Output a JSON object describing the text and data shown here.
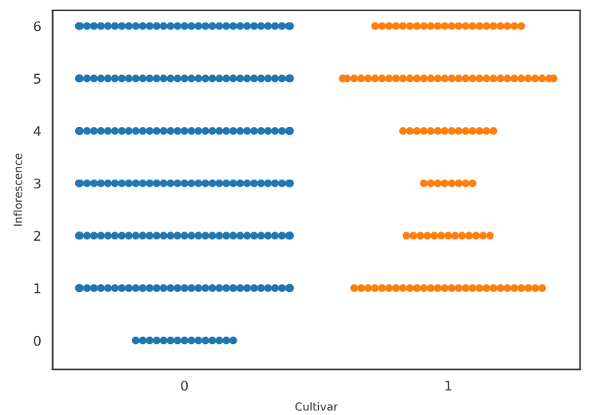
{
  "chart_data": {
    "type": "scatter",
    "xlabel": "Cultivar",
    "ylabel": "Inflorescence",
    "categories": [
      "0",
      "1"
    ],
    "ylim": [
      -0.55,
      6.3
    ],
    "yticks": [
      0,
      1,
      2,
      3,
      4,
      5,
      6
    ],
    "grid": false,
    "marker": "circle",
    "series": [
      {
        "color": "#1f77b4",
        "x": [
          "0",
          "0",
          "0",
          "0",
          "0",
          "0",
          "0",
          "0",
          "0",
          "0",
          "0",
          "0",
          "0",
          "0",
          "0",
          "0",
          "0",
          "0",
          "0",
          "0",
          "0",
          "0",
          "0",
          "0",
          "0",
          "0",
          "0",
          "0",
          "0",
          "0",
          "0",
          "0",
          "0",
          "0",
          "0",
          "0",
          "0",
          "0",
          "0",
          "0",
          "0",
          "0",
          "0",
          "0",
          "0",
          "0",
          "0",
          "0",
          "0",
          "0",
          "0",
          "0",
          "0",
          "0",
          "0",
          "0",
          "0",
          "0",
          "0",
          "0",
          "0",
          "0",
          "0",
          "0",
          "0",
          "0",
          "0",
          "0",
          "0",
          "0",
          "0",
          "0",
          "0",
          "0",
          "0",
          "0",
          "0",
          "0",
          "0",
          "0",
          "0",
          "0",
          "0",
          "0",
          "0",
          "0",
          "0",
          "0",
          "0",
          "0",
          "0",
          "0",
          "0",
          "0",
          "0",
          "0",
          "0",
          "0",
          "0",
          "0",
          "0",
          "0",
          "0",
          "0",
          "0",
          "0",
          "0",
          "0",
          "0",
          "0",
          "0",
          "0",
          "0",
          "0",
          "0",
          "0",
          "0",
          "0",
          "0",
          "0",
          "0",
          "0",
          "0",
          "0",
          "0",
          "0",
          "0",
          "0",
          "0",
          "0",
          "0",
          "0",
          "0",
          "0",
          "0",
          "0",
          "0",
          "0",
          "0",
          "0",
          "0",
          "0",
          "0",
          "0",
          "0",
          "0",
          "0",
          "0",
          "0",
          "0",
          "0",
          "0",
          "0",
          "0",
          "0",
          "0",
          "0",
          "0",
          "0",
          "0",
          "0",
          "0",
          "0",
          "0",
          "0",
          "0",
          "0",
          "0",
          "0",
          "0",
          "0",
          "0",
          "0",
          "0",
          "0",
          "0",
          "0",
          "0",
          "0",
          "0",
          "0",
          "0",
          "0",
          "0",
          "0",
          "0",
          "0",
          "0",
          "0",
          "0",
          "0",
          "0",
          "0",
          "0",
          "0",
          "0",
          "0",
          "0",
          "0",
          "0",
          "0",
          "0",
          "0",
          "0",
          "0",
          "0",
          "0",
          "0",
          "0",
          "0",
          "0",
          "0",
          "0",
          "0",
          "0",
          "0",
          "0",
          "0",
          "0",
          "0",
          "0",
          "0",
          "0",
          "0",
          "0"
        ],
        "values": [
          0,
          0,
          0,
          0,
          0,
          0,
          0,
          0,
          0,
          0,
          0,
          0,
          0,
          0,
          0,
          1,
          1,
          1,
          1,
          1,
          1,
          1,
          1,
          1,
          1,
          1,
          1,
          1,
          1,
          1,
          1,
          1,
          1,
          1,
          1,
          1,
          1,
          1,
          1,
          1,
          1,
          1,
          1,
          1,
          1,
          1,
          1,
          1,
          1,
          1,
          2,
          2,
          2,
          2,
          2,
          2,
          2,
          2,
          2,
          2,
          2,
          2,
          2,
          2,
          2,
          2,
          2,
          2,
          2,
          2,
          2,
          2,
          2,
          2,
          2,
          2,
          2,
          2,
          2,
          2,
          2,
          2,
          2,
          2,
          2,
          3,
          3,
          3,
          3,
          3,
          3,
          3,
          3,
          3,
          3,
          3,
          3,
          3,
          3,
          3,
          3,
          3,
          3,
          3,
          3,
          3,
          3,
          3,
          3,
          3,
          3,
          3,
          3,
          3,
          3,
          3,
          3,
          3,
          3,
          3,
          4,
          4,
          4,
          4,
          4,
          4,
          4,
          4,
          4,
          4,
          4,
          4,
          4,
          4,
          4,
          4,
          4,
          4,
          4,
          4,
          4,
          4,
          4,
          4,
          4,
          4,
          4,
          4,
          4,
          4,
          4,
          4,
          4,
          4,
          4,
          5,
          5,
          5,
          5,
          5,
          5,
          5,
          5,
          5,
          5,
          5,
          5,
          5,
          5,
          5,
          5,
          5,
          5,
          5,
          5,
          5,
          5,
          5,
          5,
          5,
          5,
          5,
          5,
          5,
          5,
          5,
          5,
          5,
          5,
          5,
          6,
          6,
          6,
          6,
          6,
          6,
          6,
          6,
          6,
          6,
          6,
          6,
          6,
          6,
          6,
          6,
          6,
          6,
          6,
          6,
          6,
          6,
          6,
          6,
          6,
          6,
          6,
          6,
          6,
          6,
          6,
          6,
          6,
          6,
          6
        ]
      },
      {
        "color": "#ff7f0e",
        "x": [
          "1",
          "1",
          "1",
          "1",
          "1",
          "1",
          "1",
          "1",
          "1",
          "1",
          "1",
          "1",
          "1",
          "1",
          "1",
          "1",
          "1",
          "1",
          "1",
          "1",
          "1",
          "1",
          "1",
          "1",
          "1",
          "1",
          "1",
          "1",
          "1",
          "1",
          "1",
          "1",
          "1",
          "1",
          "1",
          "1",
          "1",
          "1",
          "1",
          "1",
          "1",
          "1",
          "1",
          "1",
          "1",
          "1",
          "1",
          "1",
          "1",
          "1",
          "1",
          "1",
          "1",
          "1",
          "1",
          "1",
          "1",
          "1",
          "1",
          "1",
          "1",
          "1",
          "1",
          "1",
          "1",
          "1",
          "1",
          "1",
          "1",
          "1",
          "1",
          "1",
          "1",
          "1",
          "1",
          "1",
          "1",
          "1",
          "1",
          "1",
          "1",
          "1",
          "1",
          "1",
          "1",
          "1",
          "1",
          "1",
          "1",
          "1",
          "1",
          "1",
          "1",
          "1",
          "1",
          "1",
          "1",
          "1",
          "1",
          "1",
          "1",
          "1",
          "1",
          "1",
          "1",
          "1",
          "1",
          "1",
          "1",
          "1",
          "1",
          "1",
          "1",
          "1",
          "1",
          "1",
          "1"
        ],
        "values": [
          1,
          1,
          1,
          1,
          1,
          1,
          1,
          1,
          1,
          1,
          1,
          1,
          1,
          1,
          1,
          1,
          1,
          1,
          1,
          1,
          1,
          1,
          1,
          1,
          1,
          1,
          1,
          1,
          2,
          2,
          2,
          2,
          2,
          2,
          2,
          2,
          2,
          2,
          2,
          2,
          2,
          3,
          3,
          3,
          3,
          3,
          3,
          3,
          3,
          4,
          4,
          4,
          4,
          4,
          4,
          4,
          4,
          4,
          4,
          4,
          4,
          4,
          4,
          5,
          5,
          5,
          5,
          5,
          5,
          5,
          5,
          5,
          5,
          5,
          5,
          5,
          5,
          5,
          5,
          5,
          5,
          5,
          5,
          5,
          5,
          5,
          5,
          5,
          5,
          5,
          5,
          5,
          5,
          5,
          5,
          6,
          6,
          6,
          6,
          6,
          6,
          6,
          6,
          6,
          6,
          6,
          6,
          6,
          6,
          6,
          6,
          6,
          6,
          6,
          6,
          6,
          6
        ]
      }
    ]
  }
}
